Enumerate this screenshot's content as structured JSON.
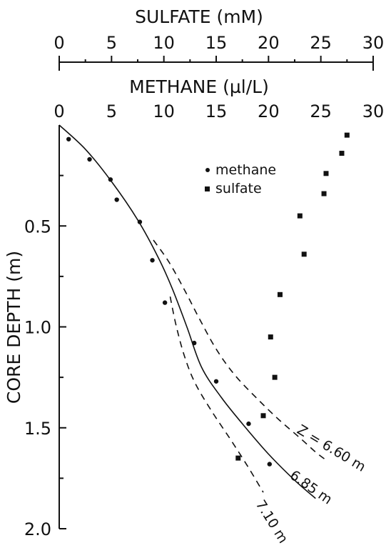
{
  "chart_data": {
    "type": "scatter",
    "top_axis_label": "SULFATE (mM)",
    "second_axis_label": "METHANE (µl/L)",
    "ylabel": "CORE DEPTH (m)",
    "xlim": [
      0,
      30
    ],
    "ylim": [
      0,
      2.0
    ],
    "y_inverted": true,
    "x_ticks": [
      "0",
      "5",
      "10",
      "15",
      "20",
      "25",
      "30"
    ],
    "y_ticks": [
      "0.5",
      "1.0",
      "1.5",
      "2.0"
    ],
    "legend_position": "upper-middle",
    "series": [
      {
        "name": "methane",
        "marker": "circle",
        "points": [
          [
            0.9,
            0.07
          ],
          [
            2.9,
            0.17
          ],
          [
            4.9,
            0.27
          ],
          [
            5.5,
            0.37
          ],
          [
            7.7,
            0.48
          ],
          [
            8.9,
            0.67
          ],
          [
            10.1,
            0.88
          ],
          [
            12.9,
            1.08
          ],
          [
            15.0,
            1.27
          ],
          [
            18.1,
            1.48
          ],
          [
            20.1,
            1.68
          ]
        ]
      },
      {
        "name": "sulfate",
        "marker": "square",
        "points": [
          [
            27.5,
            0.05
          ],
          [
            27.0,
            0.14
          ],
          [
            25.5,
            0.24
          ],
          [
            25.3,
            0.34
          ],
          [
            23.0,
            0.45
          ],
          [
            23.4,
            0.64
          ],
          [
            21.1,
            0.84
          ],
          [
            20.2,
            1.05
          ],
          [
            20.6,
            1.25
          ],
          [
            19.5,
            1.44
          ],
          [
            17.1,
            1.65
          ]
        ]
      }
    ],
    "model_curves": [
      {
        "label": "6.85 m",
        "style": "solid",
        "points": [
          [
            0.0,
            0.0
          ],
          [
            2.5,
            0.12
          ],
          [
            5.0,
            0.28
          ],
          [
            7.5,
            0.47
          ],
          [
            9.5,
            0.66
          ],
          [
            10.8,
            0.81
          ],
          [
            12.2,
            1.0
          ],
          [
            13.6,
            1.2
          ],
          [
            15.5,
            1.35
          ],
          [
            17.5,
            1.48
          ],
          [
            20.0,
            1.63
          ],
          [
            22.5,
            1.76
          ],
          [
            24.5,
            1.85
          ]
        ]
      },
      {
        "label": "Z = 6.60 m",
        "style": "dashed",
        "points": [
          [
            9.0,
            0.57
          ],
          [
            10.5,
            0.68
          ],
          [
            12.0,
            0.82
          ],
          [
            13.4,
            0.96
          ],
          [
            15.0,
            1.11
          ],
          [
            16.8,
            1.24
          ],
          [
            19.0,
            1.36
          ],
          [
            21.0,
            1.46
          ],
          [
            23.0,
            1.55
          ],
          [
            24.5,
            1.62
          ],
          [
            25.5,
            1.66
          ]
        ]
      },
      {
        "label": "7.10 m",
        "style": "dashed",
        "points": [
          [
            10.6,
            0.85
          ],
          [
            11.2,
            1.0
          ],
          [
            12.0,
            1.15
          ],
          [
            13.0,
            1.28
          ],
          [
            14.6,
            1.42
          ],
          [
            16.4,
            1.56
          ],
          [
            18.0,
            1.69
          ],
          [
            19.5,
            1.82
          ]
        ]
      }
    ]
  }
}
